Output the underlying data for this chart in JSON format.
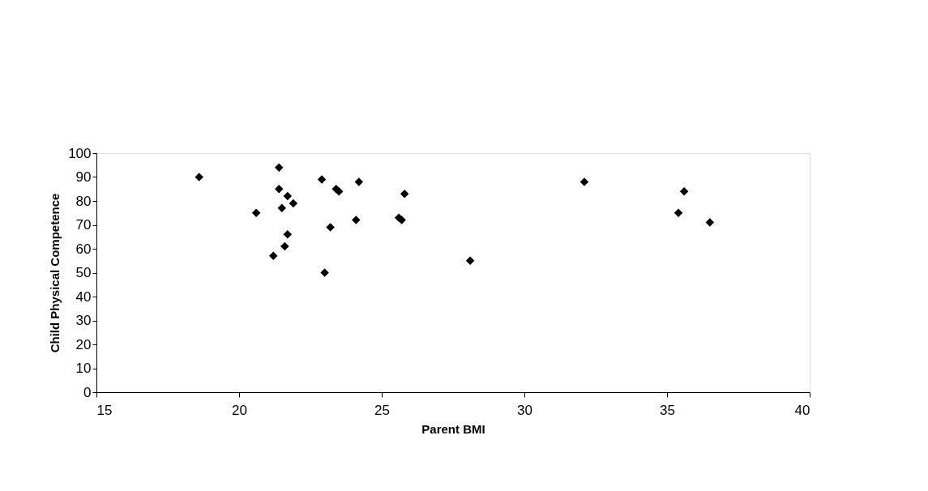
{
  "chart_data": {
    "type": "scatter",
    "xlabel": "Parent BMI",
    "ylabel": "Child Physical Competence",
    "x": [
      18.6,
      20.6,
      21.4,
      21.4,
      21.5,
      21.7,
      21.9,
      21.7,
      21.6,
      21.2,
      22.9,
      23.0,
      23.2,
      23.4,
      23.5,
      24.2,
      24.1,
      25.8,
      25.6,
      25.7,
      28.1,
      32.1,
      35.6,
      35.4,
      36.5
    ],
    "series": [
      {
        "color": "#000000",
        "values": [
          90,
          75,
          94,
          85,
          77,
          82,
          79,
          66,
          61,
          57,
          89,
          50,
          69,
          85,
          84,
          88,
          72,
          83,
          73,
          72,
          55,
          88,
          84,
          75,
          71
        ]
      }
    ],
    "xlim": [
      15,
      40
    ],
    "xticks": [
      15,
      20,
      25,
      30,
      35,
      40
    ],
    "ylim": [
      0,
      100
    ],
    "yticks": [
      0,
      10,
      20,
      30,
      40,
      50,
      60,
      70,
      80,
      90,
      100
    ],
    "marker": "diamond",
    "grid": false,
    "legend": false
  }
}
